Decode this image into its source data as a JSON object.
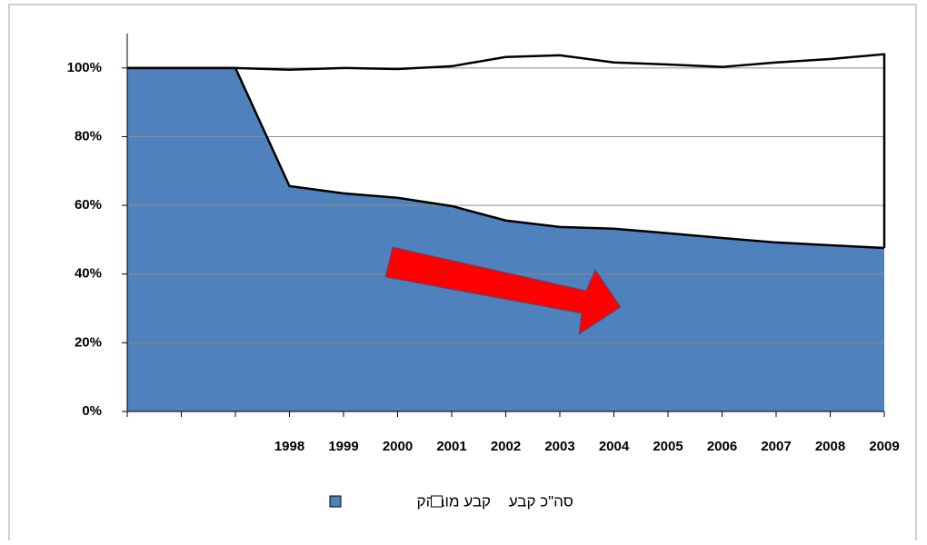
{
  "chart_data": {
    "type": "area",
    "categories": [
      null,
      null,
      null,
      "1998",
      "1999",
      "2000",
      "2001",
      "2002",
      "2003",
      "2004",
      "2005",
      "2006",
      "2007",
      "2008",
      "2009"
    ],
    "series": [
      {
        "name": "סה\"כ קבע",
        "color": "#ffffff",
        "values": [
          100,
          100,
          100,
          99.5,
          100,
          99.7,
          100.5,
          103.2,
          103.7,
          101.6,
          101,
          100.3,
          101.6,
          102.6,
          104
        ]
      },
      {
        "name": "קבע מובהק",
        "color": "#4f81bd",
        "values": [
          100,
          100,
          100,
          65.6,
          63.5,
          62.2,
          59.8,
          55.6,
          53.7,
          53.2,
          51.9,
          50.5,
          49.2,
          48.4,
          47.6
        ]
      }
    ],
    "ylim": [
      0,
      110
    ],
    "yticks": [
      {
        "value": 0,
        "label": "0%"
      },
      {
        "value": 20,
        "label": "20%"
      },
      {
        "value": 40,
        "label": "40%"
      },
      {
        "value": 60,
        "label": "60%"
      },
      {
        "value": 80,
        "label": "80%"
      },
      {
        "value": 100,
        "label": "100%"
      }
    ],
    "grid": true
  }
}
